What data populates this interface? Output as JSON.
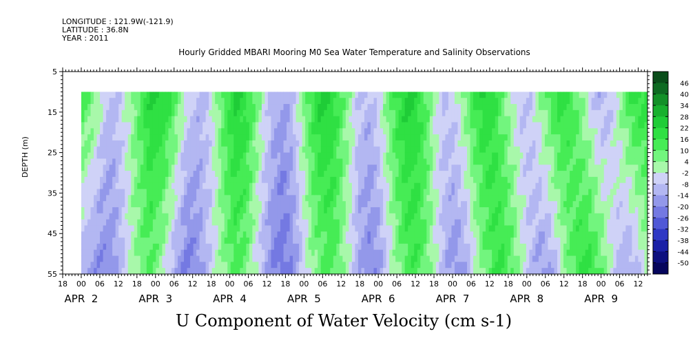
{
  "header": {
    "longitude": "LONGITUDE : 121.9W(-121.9)",
    "latitude": "LATITUDE : 36.8N",
    "year": "YEAR : 2011"
  },
  "chart_data": {
    "type": "heatmap",
    "title": "Hourly Gridded MBARI Mooring M0 Sea Water Temperature and Salinity Observations",
    "xlabel": "U Component of Water Velocity (cm s-1)",
    "ylabel": "DEPTH (m)",
    "yticks": [
      5,
      15,
      25,
      35,
      45,
      55
    ],
    "ylim": [
      5,
      55
    ],
    "y_reversed": true,
    "x_hour_labels": [
      "18",
      "00",
      "06",
      "12",
      "18",
      "00",
      "06",
      "12",
      "18",
      "00",
      "06",
      "12",
      "18",
      "00",
      "06",
      "12",
      "18",
      "00",
      "06",
      "12",
      "18",
      "00",
      "06",
      "12",
      "18",
      "00",
      "06",
      "12",
      "18",
      "00",
      "06",
      "12"
    ],
    "x_day_labels": [
      "APR  2",
      "APR  3",
      "APR  4",
      "APR  5",
      "APR  6",
      "APR  7",
      "APR  8",
      "APR  9"
    ],
    "x_start": "APR 1 18:00",
    "data_start": "APR 2 00:00",
    "data_end": "APR 9 15:00",
    "data_depth_range": [
      10,
      55
    ],
    "colorbar_labels": [
      "46",
      "40",
      "34",
      "28",
      "22",
      "16",
      "10",
      "4",
      "-2",
      "-8",
      "-14",
      "-20",
      "-26",
      "-32",
      "-38",
      "-44",
      "-50"
    ],
    "colorbar_colors": [
      "#0a4d1a",
      "#0e6a22",
      "#139028",
      "#18b02e",
      "#1fcc37",
      "#2fe043",
      "#46ec55",
      "#72f57e",
      "#a8f8aa",
      "#cfd2f7",
      "#b3b7f2",
      "#9398ea",
      "#7479e2",
      "#5058d6",
      "#2f38c4",
      "#1a20a6",
      "#0d107f",
      "#06065c"
    ],
    "velocity_profile": {
      "units": "cm s-1",
      "surface": [
        14,
        8,
        -2,
        -10,
        -6,
        2,
        12,
        22,
        24,
        18,
        8,
        -4,
        -10,
        -8,
        2,
        14,
        22,
        20,
        10,
        -2,
        -10,
        -14,
        -8,
        4,
        16,
        24,
        22,
        12,
        2,
        -8,
        -10,
        -4,
        8,
        18,
        24,
        20,
        10,
        -2,
        -8,
        -4,
        6,
        16,
        22,
        18,
        8,
        -2,
        -8,
        -6,
        4,
        14,
        20,
        16,
        6,
        -4,
        -12,
        -10,
        0,
        12,
        20,
        18
      ],
      "deep": [
        -12,
        -16,
        -20,
        -18,
        -10,
        -2,
        6,
        10,
        4,
        -6,
        -16,
        -22,
        -18,
        -10,
        -2,
        6,
        12,
        8,
        -2,
        -12,
        -20,
        -24,
        -18,
        -8,
        2,
        8,
        12,
        6,
        -4,
        -14,
        -20,
        -16,
        -6,
        4,
        12,
        14,
        8,
        -2,
        -12,
        -18,
        -14,
        -4,
        6,
        14,
        16,
        10,
        0,
        -10,
        -16,
        -14,
        -4,
        8,
        16,
        18,
        12,
        2,
        -8,
        -14,
        -10,
        0
      ]
    },
    "grid": false,
    "legend": "colorbar-right"
  }
}
